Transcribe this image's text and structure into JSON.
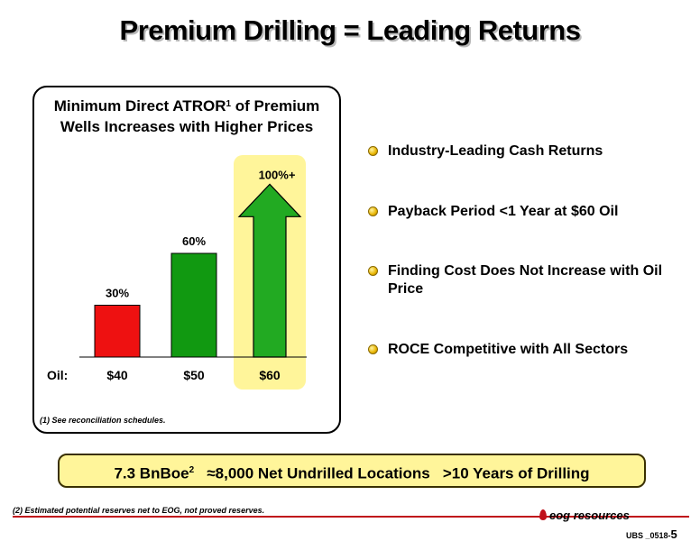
{
  "title": "Premium Drilling = Leading Returns",
  "chart_data": {
    "type": "bar",
    "title": "Minimum Direct ATROR",
    "title_sup": "1",
    "title_rest": " of Premium Wells Increases with Higher Prices",
    "x_prefix": "Oil:",
    "categories": [
      "$40",
      "$50",
      "$60"
    ],
    "values": [
      30,
      60,
      100
    ],
    "labels": [
      "30%",
      "60%",
      "100%+"
    ],
    "colors": [
      "#ee1111",
      "#119911",
      "#22aa22"
    ],
    "highlight_color": "#fff59a",
    "last_is_arrow": true,
    "ylim": [
      0,
      120
    ]
  },
  "footnote1": "(1) See reconciliation schedules.",
  "bullets": [
    "Industry-Leading Cash Returns",
    "Payback Period <1 Year at $60 Oil",
    "Finding Cost Does Not Increase with Oil Price",
    "ROCE Competitive with All Sectors"
  ],
  "banner": {
    "part1": "7.3 BnBoe",
    "part1_sup": "2",
    "part2": "≈8,000 Net Undrilled Locations",
    "part3": ">10 Years of Drilling"
  },
  "footnote2": "(2)  Estimated potential reserves net to EOG, not proved reserves.",
  "logo": "eog resources",
  "page_id": "UBS _0518-",
  "page_num": "5"
}
